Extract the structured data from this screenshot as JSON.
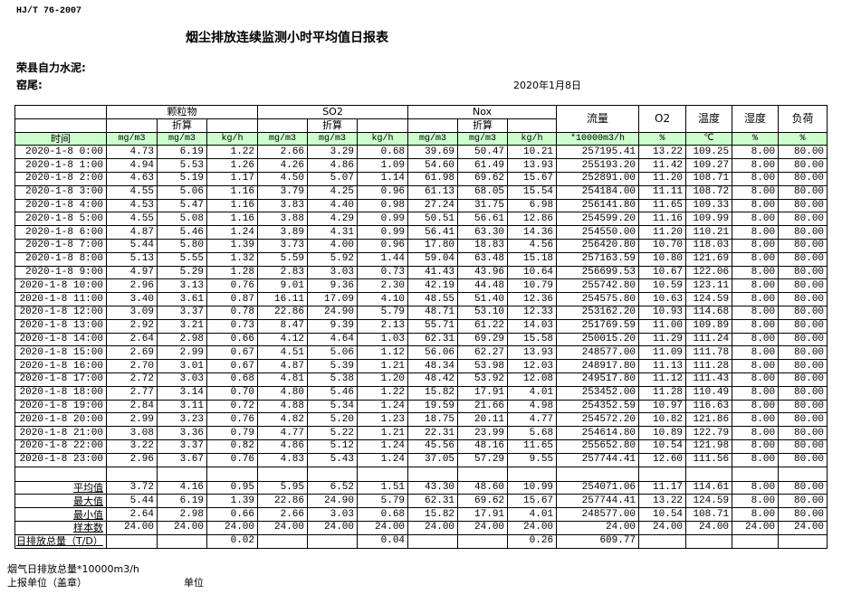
{
  "standard": "HJ/T  76-2007",
  "title": "烟尘排放连续监测小时平均值日报表",
  "company": "荣县自力水泥:",
  "site": "窑尾:",
  "date": "2020年1月8日",
  "header": {
    "groups": [
      "颗粒物",
      "SO2",
      "Nox"
    ],
    "converted": "折算",
    "single": [
      "流量",
      "O2",
      "温度",
      "湿度",
      "负荷"
    ],
    "time": "时间",
    "units": [
      "mg/m3",
      "mg/m3",
      "kg/h",
      "mg/m3",
      "mg/m3",
      "kg/h",
      "mg/m3",
      "mg/m3",
      "kg/h",
      "*10000m3/h",
      "%",
      "℃",
      "%",
      "%"
    ]
  },
  "header_color": "#ccffcc",
  "rows": [
    [
      "2020-1-8 0:00",
      "4.73",
      "6.19",
      "1.22",
      "2.66",
      "3.29",
      "0.68",
      "39.69",
      "50.47",
      "10.21",
      "257195.41",
      "13.22",
      "109.25",
      "8.00",
      "80.00"
    ],
    [
      "2020-1-8 1:00",
      "4.94",
      "5.53",
      "1.26",
      "4.26",
      "4.86",
      "1.09",
      "54.60",
      "61.49",
      "13.93",
      "255193.20",
      "11.42",
      "109.27",
      "8.00",
      "80.00"
    ],
    [
      "2020-1-8 2:00",
      "4.63",
      "5.19",
      "1.17",
      "4.50",
      "5.07",
      "1.14",
      "61.98",
      "69.62",
      "15.67",
      "252891.00",
      "11.20",
      "108.71",
      "8.00",
      "80.00"
    ],
    [
      "2020-1-8 3:00",
      "4.55",
      "5.06",
      "1.16",
      "3.79",
      "4.25",
      "0.96",
      "61.13",
      "68.05",
      "15.54",
      "254184.00",
      "11.11",
      "108.72",
      "8.00",
      "80.00"
    ],
    [
      "2020-1-8 4:00",
      "4.53",
      "5.47",
      "1.16",
      "3.83",
      "4.40",
      "0.98",
      "27.24",
      "31.75",
      "6.98",
      "256141.80",
      "11.65",
      "109.33",
      "8.00",
      "80.00"
    ],
    [
      "2020-1-8 5:00",
      "4.55",
      "5.08",
      "1.16",
      "3.88",
      "4.29",
      "0.99",
      "50.51",
      "56.61",
      "12.86",
      "254599.20",
      "11.16",
      "109.99",
      "8.00",
      "80.00"
    ],
    [
      "2020-1-8 6:00",
      "4.87",
      "5.46",
      "1.24",
      "3.89",
      "4.31",
      "0.99",
      "56.41",
      "63.30",
      "14.36",
      "254550.00",
      "11.20",
      "110.21",
      "8.00",
      "80.00"
    ],
    [
      "2020-1-8 7:00",
      "5.44",
      "5.80",
      "1.39",
      "3.73",
      "4.00",
      "0.96",
      "17.80",
      "18.83",
      "4.56",
      "256420.80",
      "10.70",
      "118.03",
      "8.00",
      "80.00"
    ],
    [
      "2020-1-8 8:00",
      "5.13",
      "5.55",
      "1.32",
      "5.59",
      "5.92",
      "1.44",
      "59.04",
      "63.48",
      "15.18",
      "257163.59",
      "10.80",
      "121.69",
      "8.00",
      "80.00"
    ],
    [
      "2020-1-8 9:00",
      "4.97",
      "5.29",
      "1.28",
      "2.83",
      "3.03",
      "0.73",
      "41.43",
      "43.96",
      "10.64",
      "256699.53",
      "10.67",
      "122.06",
      "8.00",
      "80.00"
    ],
    [
      "2020-1-8 10:00",
      "2.96",
      "3.13",
      "0.76",
      "9.01",
      "9.36",
      "2.30",
      "42.19",
      "44.48",
      "10.79",
      "255742.80",
      "10.59",
      "123.11",
      "8.00",
      "80.00"
    ],
    [
      "2020-1-8 11:00",
      "3.40",
      "3.61",
      "0.87",
      "16.11",
      "17.09",
      "4.10",
      "48.55",
      "51.40",
      "12.36",
      "254575.80",
      "10.63",
      "124.59",
      "8.00",
      "80.00"
    ],
    [
      "2020-1-8 12:00",
      "3.09",
      "3.37",
      "0.78",
      "22.86",
      "24.90",
      "5.79",
      "48.71",
      "53.10",
      "12.33",
      "253162.20",
      "10.93",
      "114.68",
      "8.00",
      "80.00"
    ],
    [
      "2020-1-8 13:00",
      "2.92",
      "3.21",
      "0.73",
      "8.47",
      "9.39",
      "2.13",
      "55.71",
      "61.22",
      "14.03",
      "251769.59",
      "11.00",
      "109.89",
      "8.00",
      "80.00"
    ],
    [
      "2020-1-8 14:00",
      "2.64",
      "2.98",
      "0.66",
      "4.12",
      "4.64",
      "1.03",
      "62.31",
      "69.29",
      "15.58",
      "250015.20",
      "11.29",
      "111.24",
      "8.00",
      "80.00"
    ],
    [
      "2020-1-8 15:00",
      "2.69",
      "2.99",
      "0.67",
      "4.51",
      "5.06",
      "1.12",
      "56.06",
      "62.27",
      "13.93",
      "248577.00",
      "11.09",
      "111.78",
      "8.00",
      "80.00"
    ],
    [
      "2020-1-8 16:00",
      "2.70",
      "3.01",
      "0.67",
      "4.87",
      "5.39",
      "1.21",
      "48.34",
      "53.98",
      "12.03",
      "248917.80",
      "11.13",
      "111.28",
      "8.00",
      "80.00"
    ],
    [
      "2020-1-8 17:00",
      "2.72",
      "3.03",
      "0.68",
      "4.81",
      "5.38",
      "1.20",
      "48.42",
      "53.92",
      "12.08",
      "249517.80",
      "11.12",
      "111.43",
      "8.00",
      "80.00"
    ],
    [
      "2020-1-8 18:00",
      "2.77",
      "3.14",
      "0.70",
      "4.80",
      "5.46",
      "1.22",
      "15.82",
      "17.91",
      "4.01",
      "253452.00",
      "11.28",
      "110.49",
      "8.00",
      "80.00"
    ],
    [
      "2020-1-8 19:00",
      "2.84",
      "3.11",
      "0.72",
      "4.88",
      "5.34",
      "1.24",
      "19.59",
      "21.66",
      "4.98",
      "254352.59",
      "10.97",
      "116.63",
      "8.00",
      "80.00"
    ],
    [
      "2020-1-8 20:00",
      "2.99",
      "3.23",
      "0.76",
      "4.82",
      "5.20",
      "1.23",
      "18.75",
      "20.11",
      "4.77",
      "254572.20",
      "10.82",
      "121.86",
      "8.00",
      "80.00"
    ],
    [
      "2020-1-8 21:00",
      "3.08",
      "3.36",
      "0.79",
      "4.77",
      "5.22",
      "1.21",
      "22.31",
      "23.99",
      "5.68",
      "254614.80",
      "10.89",
      "122.79",
      "8.00",
      "80.00"
    ],
    [
      "2020-1-8 22:00",
      "3.22",
      "3.37",
      "0.82",
      "4.86",
      "5.12",
      "1.24",
      "45.56",
      "48.16",
      "11.65",
      "255652.80",
      "10.54",
      "121.98",
      "8.00",
      "80.00"
    ],
    [
      "2020-1-8 23:00",
      "2.96",
      "3.67",
      "0.76",
      "4.83",
      "5.43",
      "1.24",
      "37.05",
      "57.29",
      "9.55",
      "257744.41",
      "12.60",
      "111.56",
      "8.00",
      "80.00"
    ]
  ],
  "summary": [
    [
      "平均值",
      "3.72",
      "4.16",
      "0.95",
      "5.95",
      "6.52",
      "1.51",
      "43.30",
      "48.60",
      "10.99",
      "254071.06",
      "11.17",
      "114.61",
      "8.00",
      "80.00"
    ],
    [
      "最大值",
      "5.44",
      "6.19",
      "1.39",
      "22.86",
      "24.90",
      "5.79",
      "62.31",
      "69.62",
      "15.67",
      "257744.41",
      "13.22",
      "124.59",
      "8.00",
      "80.00"
    ],
    [
      "最小值",
      "2.64",
      "2.98",
      "0.66",
      "2.66",
      "3.03",
      "0.68",
      "15.82",
      "17.91",
      "4.01",
      "248577.00",
      "10.54",
      "108.71",
      "8.00",
      "80.00"
    ],
    [
      "样本数",
      "24.00",
      "24.00",
      "24.00",
      "24.00",
      "24.00",
      "24.00",
      "24.00",
      "24.00",
      "24.00",
      "24.00",
      "24.00",
      "24.00",
      "24.00",
      "24.00"
    ]
  ],
  "daily_total": [
    "日排放总量（T/D）",
    "",
    "",
    "0.02",
    "",
    "",
    "0.04",
    "",
    "",
    "0.26",
    "609.77",
    "",
    "",
    "",
    ""
  ],
  "footer": {
    "flue_total": "烟气日排放总量*10000m3/h",
    "reporter": "上报单位（盖章）",
    "unit": "单位"
  }
}
